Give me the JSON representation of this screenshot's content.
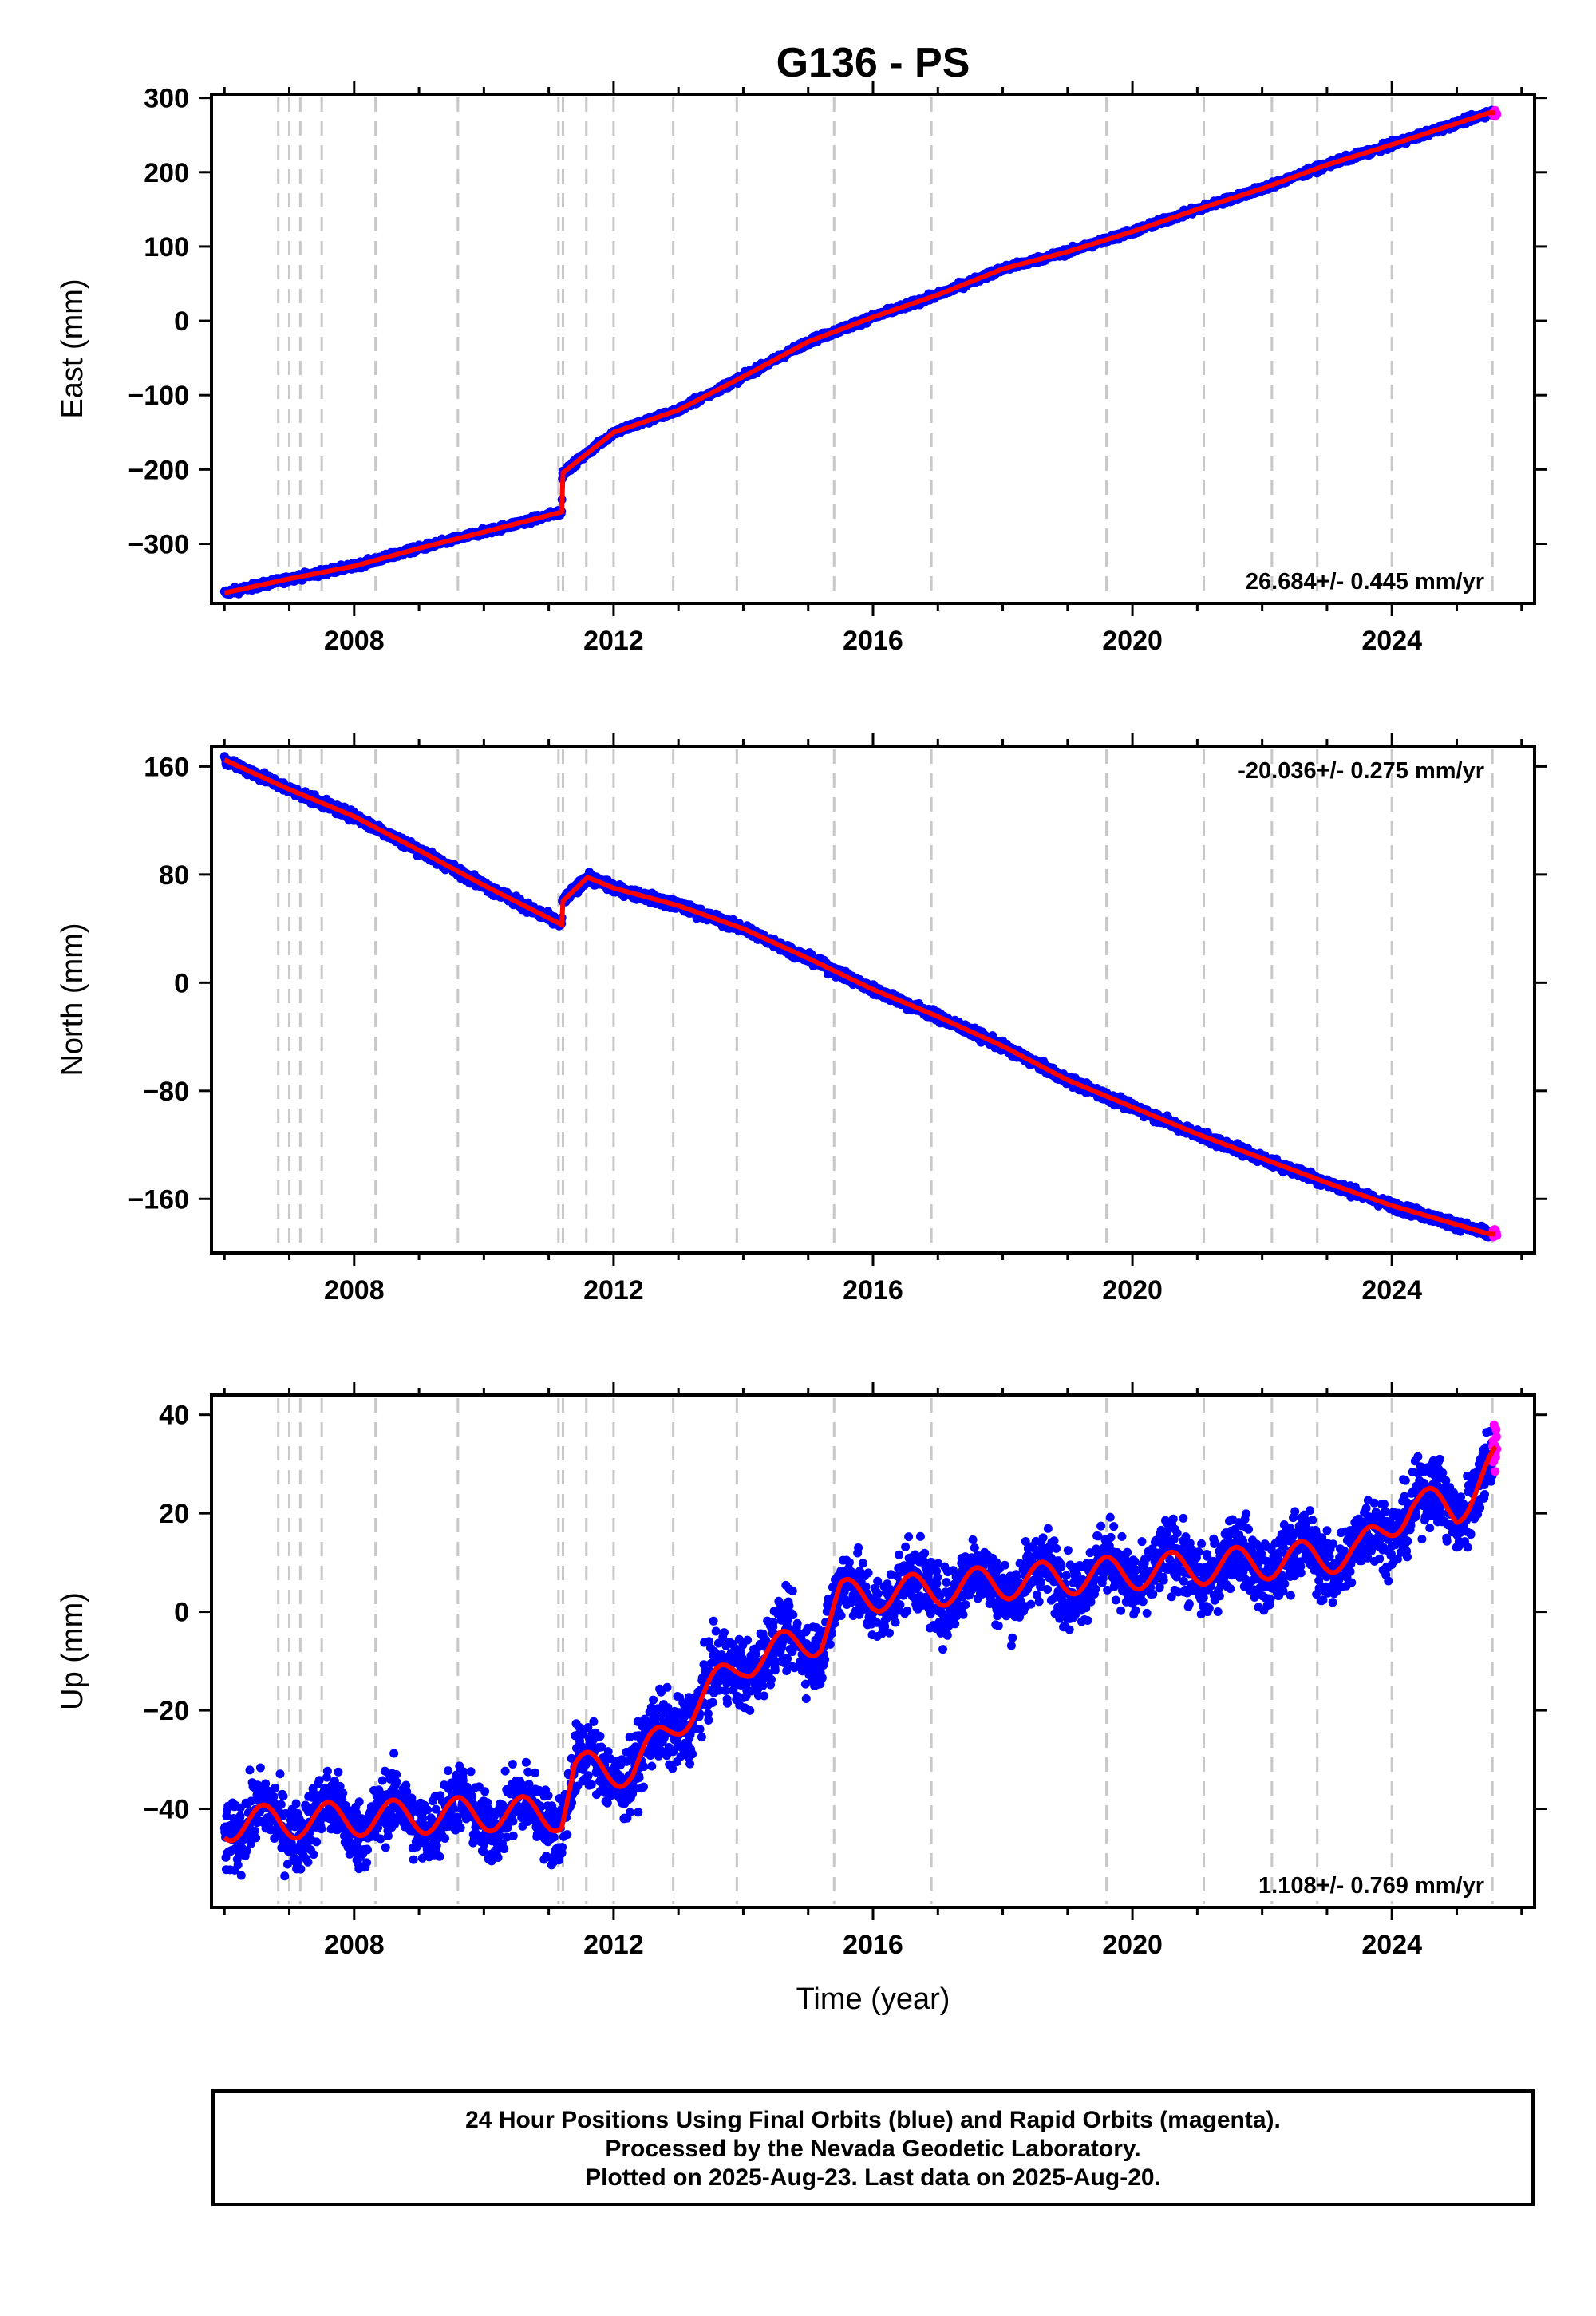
{
  "chart_data": {
    "title": "G136 - PS",
    "xlabel": "Time (year)",
    "xlim": [
      2005.8,
      2026.2
    ],
    "x_ticks": [
      2008,
      2012,
      2016,
      2020,
      2024
    ],
    "event_years": [
      2006.83,
      2007.0,
      2007.17,
      2007.5,
      2008.33,
      2009.6,
      2011.15,
      2011.22,
      2011.58,
      2012.0,
      2012.92,
      2013.9,
      2015.4,
      2016.9,
      2019.6,
      2021.1,
      2022.15,
      2022.85,
      2024.0,
      2025.55
    ],
    "legend_colors": {
      "final": "#0000ff",
      "rapid": "#ff00ff",
      "model": "#ff0000",
      "events": "#c8c8c8"
    },
    "panels": [
      {
        "name": "east",
        "type": "scatter",
        "ylabel": "East (mm)",
        "ylim": [
          -380,
          305
        ],
        "y_ticks": [
          -300,
          -200,
          -100,
          0,
          100,
          200,
          300
        ],
        "rate_label": "26.684+/- 0.445 mm/yr",
        "rate_position": "bottom-right",
        "noise_mm": 3,
        "trend": [
          [
            2006.0,
            -366
          ],
          [
            2007.0,
            -347
          ],
          [
            2008.0,
            -330
          ],
          [
            2009.0,
            -306
          ],
          [
            2010.0,
            -284
          ],
          [
            2011.2,
            -257
          ],
          [
            2011.21,
            -205
          ],
          [
            2012.0,
            -150
          ],
          [
            2013.0,
            -120
          ],
          [
            2014.0,
            -75
          ],
          [
            2015.0,
            -28
          ],
          [
            2016.0,
            5
          ],
          [
            2017.0,
            35
          ],
          [
            2018.0,
            70
          ],
          [
            2019.0,
            93
          ],
          [
            2020.0,
            120
          ],
          [
            2021.0,
            150
          ],
          [
            2022.0,
            178
          ],
          [
            2023.0,
            210
          ],
          [
            2024.0,
            237
          ],
          [
            2025.5,
            280
          ]
        ]
      },
      {
        "name": "north",
        "type": "scatter",
        "ylabel": "North (mm)",
        "ylim": [
          -200,
          175
        ],
        "y_ticks": [
          -160,
          -80,
          0,
          80,
          160
        ],
        "rate_label": "-20.036+/- 0.275 mm/yr",
        "rate_position": "top-right",
        "noise_mm": 2.5,
        "trend": [
          [
            2006.0,
            165
          ],
          [
            2007.0,
            143
          ],
          [
            2008.0,
            123
          ],
          [
            2009.0,
            98
          ],
          [
            2010.0,
            72
          ],
          [
            2011.2,
            43
          ],
          [
            2011.21,
            60
          ],
          [
            2011.6,
            78
          ],
          [
            2012.0,
            70
          ],
          [
            2013.0,
            57
          ],
          [
            2014.0,
            40
          ],
          [
            2015.0,
            18
          ],
          [
            2016.0,
            -5
          ],
          [
            2017.0,
            -25
          ],
          [
            2018.0,
            -47
          ],
          [
            2019.0,
            -72
          ],
          [
            2020.0,
            -92
          ],
          [
            2021.0,
            -112
          ],
          [
            2022.0,
            -130
          ],
          [
            2023.0,
            -148
          ],
          [
            2024.0,
            -165
          ],
          [
            2025.5,
            -186
          ]
        ]
      },
      {
        "name": "up",
        "type": "scatter",
        "ylabel": "Up (mm)",
        "ylim": [
          -60,
          44
        ],
        "y_ticks": [
          -40,
          -20,
          0,
          20,
          40
        ],
        "rate_label": "1.108+/- 0.769 mm/yr",
        "rate_position": "bottom-right",
        "noise_mm": 5,
        "seasonal_amplitude_mm": 3.5,
        "trend": [
          [
            2006.0,
            -43
          ],
          [
            2008.0,
            -42
          ],
          [
            2010.0,
            -41
          ],
          [
            2011.2,
            -41
          ],
          [
            2011.4,
            -32
          ],
          [
            2012.3,
            -32
          ],
          [
            2013.0,
            -22
          ],
          [
            2014.0,
            -10
          ],
          [
            2015.2,
            -5
          ],
          [
            2015.5,
            3
          ],
          [
            2016.5,
            4
          ],
          [
            2018.0,
            6
          ],
          [
            2020.0,
            8
          ],
          [
            2022.0,
            10
          ],
          [
            2023.5,
            12
          ],
          [
            2024.3,
            22
          ],
          [
            2025.0,
            21
          ],
          [
            2025.6,
            30
          ]
        ]
      }
    ]
  },
  "footer": {
    "line1": "24 Hour Positions Using Final Orbits (blue) and Rapid Orbits (magenta).",
    "line2": "Processed by the Nevada Geodetic Laboratory.",
    "line3": "Plotted on 2025-Aug-23. Last data on 2025-Aug-20."
  }
}
